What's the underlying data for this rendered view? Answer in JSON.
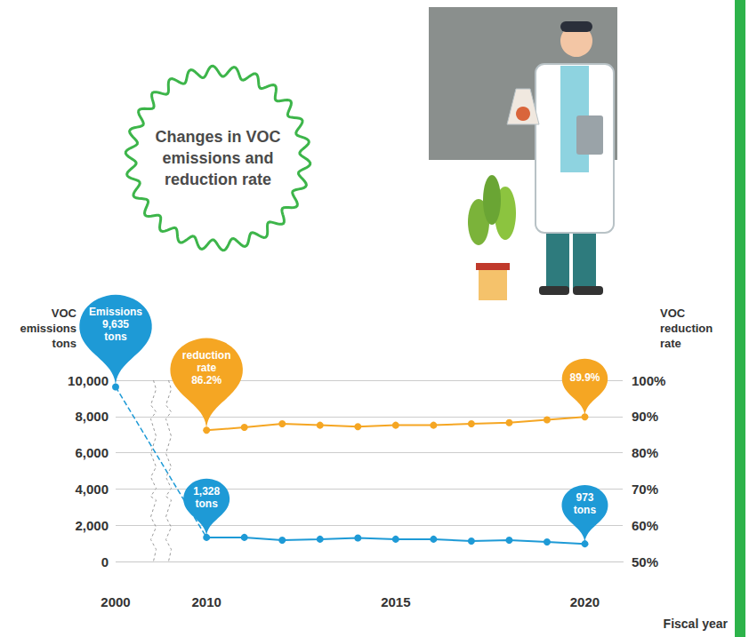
{
  "chart_data": {
    "type": "line",
    "title": "Changes in VOC emissions and reduction rate",
    "x": [
      2000,
      2010,
      2011,
      2012,
      2013,
      2014,
      2015,
      2016,
      2017,
      2018,
      2019,
      2020
    ],
    "x_label": "Fiscal year",
    "y_label": "VOC emissions",
    "y_unit": "tons",
    "y2_label": "VOC reduction rate",
    "series": [
      {
        "color": "#1e9ad6",
        "marker": "circle",
        "values": [
          9635,
          1328,
          1328,
          1180,
          1230,
          1300,
          1230,
          1230,
          1130,
          1180,
          1080,
          973
        ]
      },
      {
        "color": "#f5a623",
        "marker": "circle",
        "axis": "y2",
        "values": [
          null,
          86.2,
          87.0,
          88.0,
          87.6,
          87.2,
          87.6,
          87.6,
          88.0,
          88.3,
          89.1,
          89.9
        ]
      }
    ],
    "xlim": [
      2000,
      2021
    ],
    "xticks": [
      2000,
      2010,
      2015,
      2020
    ],
    "ylim": [
      0,
      10000
    ],
    "yticks": [
      0,
      {
        "value": 2000,
        "label": "2,000"
      },
      {
        "value": 4000,
        "label": "4,000"
      },
      {
        "value": 6000,
        "label": "6,000"
      },
      {
        "value": 8000,
        "label": "8,000"
      },
      {
        "value": 10000,
        "label": "10,000"
      }
    ],
    "y2lim": [
      50,
      100
    ],
    "y2ticks": [
      {
        "value": 50,
        "label": "50%"
      },
      {
        "value": 60,
        "label": "60%"
      },
      {
        "value": 70,
        "label": "70%"
      },
      {
        "value": 80,
        "label": "80%"
      },
      {
        "value": 90,
        "label": "90%"
      },
      {
        "value": 100,
        "label": "100%"
      }
    ],
    "grid": true,
    "annotations": [
      {
        "series": 0,
        "x": 2000,
        "text": "Emissions 9,635 tons"
      },
      {
        "series": 1,
        "x": 2010,
        "text": "reduction rate 86.2%"
      },
      {
        "series": 0,
        "x": 2010,
        "text": "1,328 tons"
      },
      {
        "series": 1,
        "x": 2020,
        "text": "89.9%"
      },
      {
        "series": 0,
        "x": 2020,
        "text": "973 tons"
      }
    ]
  }
}
